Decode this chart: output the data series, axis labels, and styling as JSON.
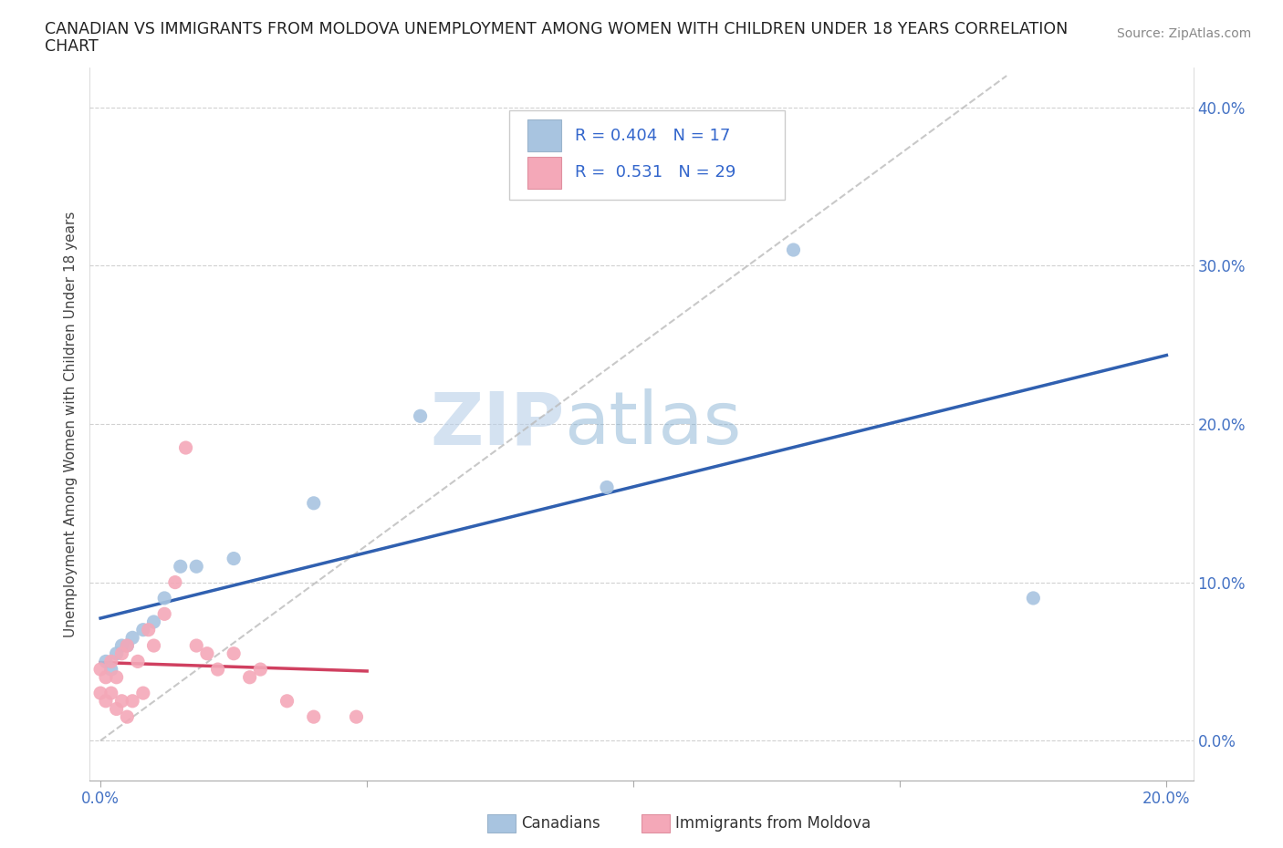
{
  "title_line1": "CANADIAN VS IMMIGRANTS FROM MOLDOVA UNEMPLOYMENT AMONG WOMEN WITH CHILDREN UNDER 18 YEARS CORRELATION",
  "title_line2": "CHART",
  "source": "Source: ZipAtlas.com",
  "ylabel": "Unemployment Among Women with Children Under 18 years",
  "xlim": [
    -0.002,
    0.205
  ],
  "ylim": [
    -0.025,
    0.425
  ],
  "yticks": [
    0.0,
    0.1,
    0.2,
    0.3,
    0.4
  ],
  "xticks": [
    0.0,
    0.05,
    0.1,
    0.15,
    0.2
  ],
  "ytick_labels": [
    "0.0%",
    "10.0%",
    "20.0%",
    "30.0%",
    "40.0%"
  ],
  "xtick_labels": [
    "0.0%",
    "",
    "",
    "",
    "20.0%"
  ],
  "canadians_x": [
    0.001,
    0.002,
    0.003,
    0.004,
    0.005,
    0.006,
    0.008,
    0.01,
    0.012,
    0.015,
    0.018,
    0.025,
    0.04,
    0.06,
    0.095,
    0.13,
    0.175
  ],
  "canadians_y": [
    0.05,
    0.045,
    0.055,
    0.06,
    0.06,
    0.065,
    0.07,
    0.075,
    0.09,
    0.11,
    0.11,
    0.115,
    0.15,
    0.205,
    0.16,
    0.31,
    0.09
  ],
  "moldovans_x": [
    0.0,
    0.0,
    0.001,
    0.001,
    0.002,
    0.002,
    0.003,
    0.003,
    0.004,
    0.004,
    0.005,
    0.005,
    0.006,
    0.007,
    0.008,
    0.009,
    0.01,
    0.012,
    0.014,
    0.016,
    0.018,
    0.02,
    0.022,
    0.025,
    0.028,
    0.03,
    0.035,
    0.04,
    0.048
  ],
  "moldovans_y": [
    0.03,
    0.045,
    0.025,
    0.04,
    0.03,
    0.05,
    0.02,
    0.04,
    0.025,
    0.055,
    0.015,
    0.06,
    0.025,
    0.05,
    0.03,
    0.07,
    0.06,
    0.08,
    0.1,
    0.185,
    0.06,
    0.055,
    0.045,
    0.055,
    0.04,
    0.045,
    0.025,
    0.015,
    0.015
  ],
  "R_canadians": 0.404,
  "N_canadians": 17,
  "R_moldovans": 0.531,
  "N_moldovans": 29,
  "color_canadians": "#a8c4e0",
  "color_moldovans": "#f4a8b8",
  "line_color_canadians": "#3060b0",
  "line_color_moldovans": "#d04060",
  "watermark_zip": "ZIP",
  "watermark_atlas": "atlas",
  "background_color": "#ffffff",
  "grid_color": "#cccccc"
}
